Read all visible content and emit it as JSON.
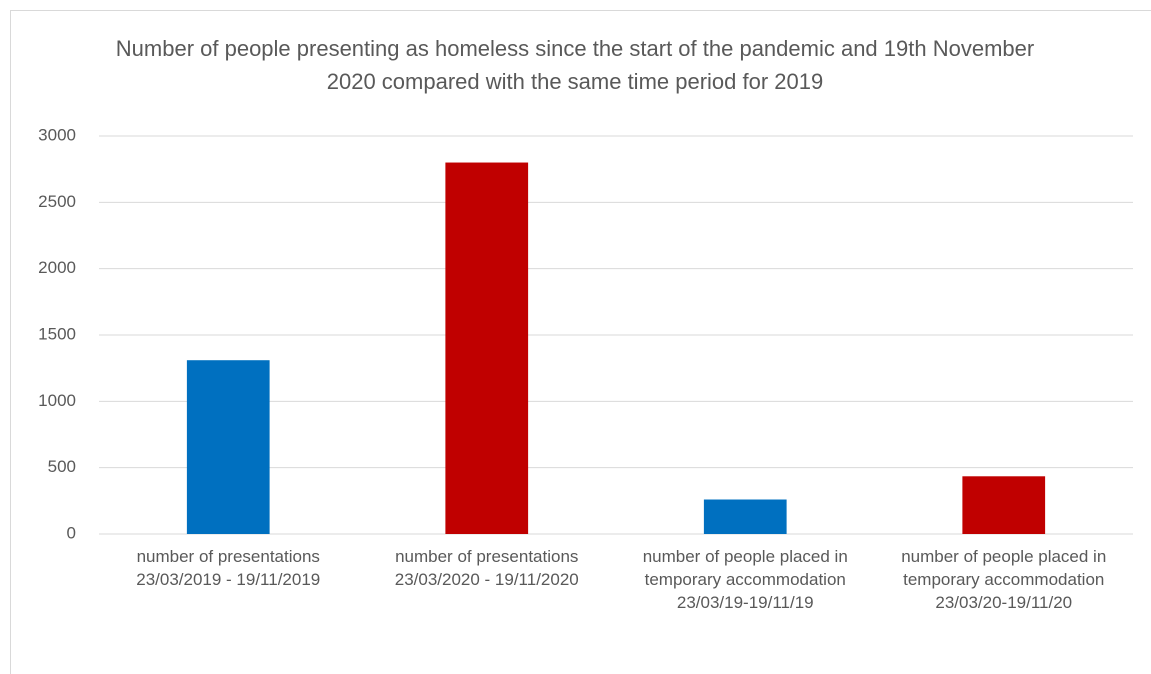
{
  "chart_data": {
    "type": "bar",
    "title": "Number of people presenting as homeless since the start of the pandemic and 19th November 2020 compared with the same time period for 2019",
    "categories": [
      "number of presentations 23/03/2019 - 19/11/2019",
      "number of presentations 23/03/2020 - 19/11/2020",
      "number of people placed in temporary accommodation 23/03/19-19/11/19",
      "number of people placed in temporary accommodation 23/03/20-19/11/20"
    ],
    "values": [
      1310,
      2800,
      260,
      435
    ],
    "colors": [
      "#0070c0",
      "#c00000",
      "#0070c0",
      "#c00000"
    ],
    "ylim": [
      0,
      3000
    ],
    "yticks": [
      0,
      500,
      1000,
      1500,
      2000,
      2500,
      3000
    ],
    "grid": true
  }
}
